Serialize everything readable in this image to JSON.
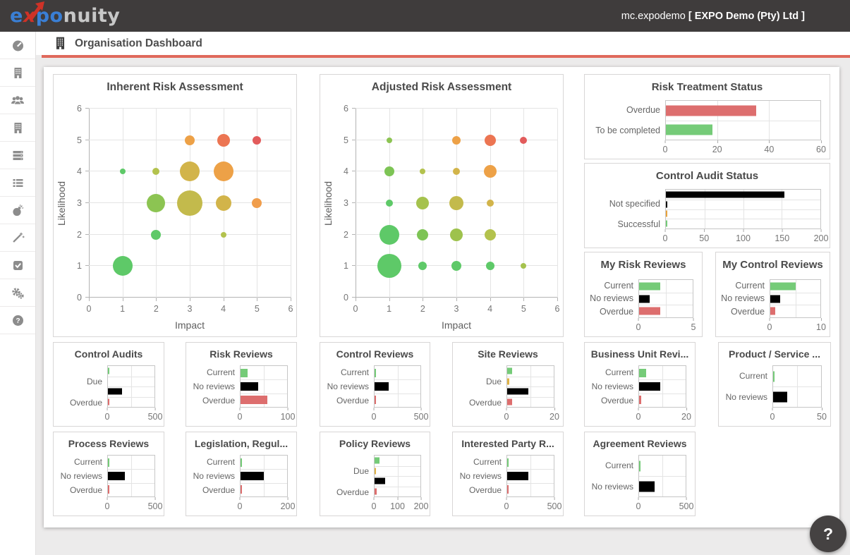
{
  "header": {
    "logo": {
      "e": "e",
      "x": "x",
      "po": "po",
      "nuity": "nuity"
    },
    "account_user": "mc.expodemo",
    "account_org": "[ EXPO Demo (Pty) Ltd ]"
  },
  "title_bar": {
    "title": "Organisation Dashboard"
  },
  "sidebar": {
    "items": [
      "dashboard-icon",
      "organisation-icon",
      "users-icon",
      "business-unit-icon",
      "registers-icon",
      "list-icon",
      "risk-bomb-icon",
      "wizard-icon",
      "tasks-icon",
      "settings-icon",
      "help-icon"
    ]
  },
  "help_button": {
    "label": "?"
  },
  "colors": {
    "header_bg": "#3f3c3c",
    "accent_red": "#e0695c",
    "bar_green": "#75cb78",
    "bar_red": "#dd6e6e",
    "bar_black": "#000000",
    "bar_yellow": "#e0b347",
    "bar_orange": "#e8a33d"
  },
  "chart_data": {
    "inherent": {
      "type": "bubble",
      "title": "Inherent Risk Assessment",
      "xlabel": "Impact",
      "ylabel": "Likelihood",
      "xlim": [
        0,
        6
      ],
      "ylim": [
        0,
        6
      ],
      "points": [
        [
          1,
          1,
          14,
          "#5ec968"
        ],
        [
          2,
          2,
          7,
          "#5ec968"
        ],
        [
          4,
          2,
          4,
          "#b3c24d"
        ],
        [
          2,
          3,
          13,
          "#8cc452"
        ],
        [
          3,
          3,
          18,
          "#c3ba4c"
        ],
        [
          4,
          3,
          11,
          "#d2b44a"
        ],
        [
          5,
          3,
          7,
          "#f09d4b"
        ],
        [
          1,
          4,
          4,
          "#5ec968"
        ],
        [
          2,
          4,
          5,
          "#b3c24d"
        ],
        [
          3,
          4,
          14,
          "#d2b44a"
        ],
        [
          4,
          4,
          14,
          "#eda147"
        ],
        [
          3,
          5,
          7,
          "#eda147"
        ],
        [
          4,
          5,
          9,
          "#ec7552"
        ],
        [
          5,
          5,
          6,
          "#e25b5b"
        ]
      ]
    },
    "adjusted": {
      "type": "bubble",
      "title": "Adjusted Risk Assessment",
      "xlabel": "Impact",
      "ylabel": "Likelihood",
      "xlim": [
        0,
        6
      ],
      "ylim": [
        0,
        6
      ],
      "points": [
        [
          1,
          1,
          17,
          "#5ec968"
        ],
        [
          2,
          1,
          6,
          "#5ec968"
        ],
        [
          3,
          1,
          7,
          "#5ec968"
        ],
        [
          4,
          1,
          6,
          "#5ec968"
        ],
        [
          5,
          1,
          4,
          "#a5c24d"
        ],
        [
          1,
          2,
          14,
          "#5ec968"
        ],
        [
          2,
          2,
          8,
          "#7dc455"
        ],
        [
          3,
          2,
          9,
          "#9ec24d"
        ],
        [
          4,
          2,
          8,
          "#b3c24d"
        ],
        [
          1,
          3,
          5,
          "#5ec968"
        ],
        [
          2,
          3,
          9,
          "#a5c24d"
        ],
        [
          3,
          3,
          10,
          "#c3ba4c"
        ],
        [
          4,
          3,
          5,
          "#d2b44a"
        ],
        [
          1,
          4,
          7,
          "#7dc455"
        ],
        [
          2,
          4,
          4,
          "#b3c24d"
        ],
        [
          3,
          4,
          5,
          "#d2b44a"
        ],
        [
          4,
          4,
          9,
          "#eda147"
        ],
        [
          1,
          5,
          4,
          "#8cc452"
        ],
        [
          3,
          5,
          6,
          "#eda147"
        ],
        [
          4,
          5,
          8,
          "#ec7552"
        ],
        [
          5,
          5,
          5,
          "#e25b5b"
        ]
      ]
    },
    "risk_treatment": {
      "type": "bar",
      "title": "Risk Treatment Status",
      "categories": [
        "Overdue",
        "To be completed"
      ],
      "values": [
        35,
        18
      ],
      "colors": [
        "red",
        "green"
      ],
      "xmax": 60,
      "ticks": [
        0,
        20,
        40,
        60
      ]
    },
    "control_audit_status": {
      "type": "bar",
      "title": "Control Audit Status",
      "categories": [
        "",
        "Not specified",
        "",
        "Successful"
      ],
      "values": [
        153,
        2,
        1,
        2
      ],
      "colors": [
        "black",
        "black",
        "orange",
        "green"
      ],
      "xmax": 200,
      "ticks": [
        0,
        50,
        100,
        150,
        200
      ]
    },
    "my_risk_reviews": {
      "type": "bar",
      "title": "My Risk Reviews",
      "categories": [
        "Current",
        "No reviews",
        "Overdue"
      ],
      "values": [
        2,
        1,
        2
      ],
      "colors": [
        "green",
        "black",
        "red"
      ],
      "xmax": 5,
      "ticks": [
        0,
        5
      ]
    },
    "my_control_reviews": {
      "type": "bar",
      "title": "My Control Reviews",
      "categories": [
        "Current",
        "No reviews",
        "Overdue"
      ],
      "values": [
        5,
        2,
        1
      ],
      "colors": [
        "green",
        "black",
        "red"
      ],
      "xmax": 10,
      "ticks": [
        0,
        10
      ]
    },
    "control_audits": {
      "type": "bar",
      "title": "Control Audits",
      "categories": [
        "",
        "Due",
        "",
        "Overdue"
      ],
      "values": [
        2,
        0,
        150,
        2
      ],
      "colors": [
        "green",
        "yellow",
        "black",
        "red"
      ],
      "xmax": 500,
      "ticks": [
        0,
        500
      ]
    },
    "risk_reviews": {
      "type": "bar",
      "title": "Risk Reviews",
      "categories": [
        "Current",
        "No reviews",
        "Overdue"
      ],
      "values": [
        15,
        38,
        58
      ],
      "colors": [
        "green",
        "black",
        "red"
      ],
      "xmax": 100,
      "ticks": [
        0,
        100
      ]
    },
    "control_reviews": {
      "type": "bar",
      "title": "Control Reviews",
      "categories": [
        "Current",
        "No reviews",
        "Overdue"
      ],
      "values": [
        3,
        150,
        3
      ],
      "colors": [
        "green",
        "black",
        "red"
      ],
      "xmax": 500,
      "ticks": [
        0,
        500
      ]
    },
    "site_reviews": {
      "type": "bar",
      "title": "Site Reviews",
      "categories": [
        "",
        "Due",
        "",
        "Overdue"
      ],
      "values": [
        2,
        1,
        9,
        2
      ],
      "colors": [
        "green",
        "yellow",
        "black",
        "red"
      ],
      "xmax": 20,
      "ticks": [
        0,
        20
      ]
    },
    "business_unit_reviews": {
      "type": "bar",
      "title": "Business Unit Revi...",
      "categories": [
        "Current",
        "No reviews",
        "Overdue"
      ],
      "values": [
        3,
        9,
        1
      ],
      "colors": [
        "green",
        "black",
        "red"
      ],
      "xmax": 20,
      "ticks": [
        0,
        20
      ]
    },
    "product_service_reviews": {
      "type": "bar",
      "title": "Product / Service ...",
      "categories": [
        "Current",
        "No reviews"
      ],
      "values": [
        1,
        15
      ],
      "colors": [
        "green",
        "black"
      ],
      "xmax": 50,
      "ticks": [
        0,
        50
      ]
    },
    "process_reviews": {
      "type": "bar",
      "title": "Process Reviews",
      "categories": [
        "Current",
        "No reviews",
        "Overdue"
      ],
      "values": [
        3,
        185,
        3
      ],
      "colors": [
        "green",
        "black",
        "red"
      ],
      "xmax": 500,
      "ticks": [
        0,
        500
      ]
    },
    "legislation_reviews": {
      "type": "bar",
      "title": "Legislation, Regul...",
      "categories": [
        "Current",
        "No reviews",
        "Overdue"
      ],
      "values": [
        3,
        100,
        3
      ],
      "colors": [
        "green",
        "black",
        "red"
      ],
      "xmax": 200,
      "ticks": [
        0,
        200
      ]
    },
    "policy_reviews": {
      "type": "bar",
      "title": "Policy Reviews",
      "categories": [
        "",
        "Due",
        "",
        "Overdue"
      ],
      "values": [
        20,
        1,
        45,
        8
      ],
      "colors": [
        "green",
        "yellow",
        "black",
        "red"
      ],
      "xmax": 200,
      "ticks": [
        0,
        100,
        200
      ]
    },
    "interested_party_reviews": {
      "type": "bar",
      "title": "Interested Party R...",
      "categories": [
        "Current",
        "No reviews",
        "Overdue"
      ],
      "values": [
        3,
        230,
        3
      ],
      "colors": [
        "green",
        "black",
        "red"
      ],
      "xmax": 500,
      "ticks": [
        0,
        500
      ]
    },
    "agreement_reviews": {
      "type": "bar",
      "title": "Agreement Reviews",
      "categories": [
        "Current",
        "No reviews"
      ],
      "values": [
        3,
        170
      ],
      "colors": [
        "green",
        "black"
      ],
      "xmax": 500,
      "ticks": [
        0,
        500
      ]
    }
  }
}
